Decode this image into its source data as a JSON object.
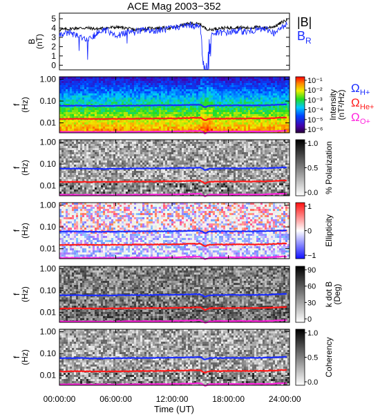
{
  "title": "ACE Mag 2003−352",
  "colors": {
    "black": "#000000",
    "blue": "#1a2cff",
    "red": "#ff1a1a",
    "magenta": "#ff22dd",
    "helium_label": "#ff1a1a",
    "oxygen_label": "#ff22dd"
  },
  "chart_data": [
    {
      "type": "line",
      "panel": "magnetic-field",
      "ylabel": "B",
      "yunit": "(nT)",
      "ylim": [
        -0.5,
        5.6
      ],
      "yticks": [
        "0",
        "1",
        "2",
        "3",
        "4",
        "5"
      ],
      "xlim_hours": [
        0,
        24.5
      ],
      "legend": [
        "|B|",
        "B"
      ],
      "legend_subscript": "R",
      "series": [
        {
          "name": "|B|",
          "color": "#000000",
          "x": [
            0,
            1,
            2,
            3,
            4,
            5,
            6,
            7,
            8,
            9,
            10,
            11,
            12,
            13,
            14,
            15,
            15.5,
            16,
            17,
            18,
            19,
            20,
            21,
            22,
            23,
            24
          ],
          "y": [
            3.8,
            3.9,
            4.0,
            4.0,
            3.9,
            4.0,
            4.1,
            4.0,
            3.8,
            3.9,
            4.0,
            4.0,
            4.0,
            4.3,
            4.5,
            4.4,
            4.0,
            3.8,
            4.0,
            4.0,
            4.1,
            4.0,
            4.1,
            4.0,
            4.2,
            4.8
          ]
        },
        {
          "name": "B",
          "color": "#1a2cff",
          "x": [
            0,
            1,
            2,
            3,
            4,
            5,
            6,
            7,
            8,
            9,
            10,
            11,
            12,
            13,
            14,
            15,
            15.5,
            16,
            17,
            18,
            19,
            20,
            21,
            22,
            23,
            24
          ],
          "y": [
            3.3,
            3.5,
            3.2,
            2.6,
            3.5,
            3.8,
            3.1,
            3.5,
            3.6,
            3.8,
            3.7,
            3.8,
            4.0,
            4.2,
            4.3,
            4.1,
            0.0,
            3.3,
            3.5,
            3.5,
            3.7,
            3.6,
            3.8,
            3.9,
            3.4,
            4.4
          ]
        }
      ]
    },
    {
      "type": "heatmap",
      "panel": "intensity",
      "ylabel": "f",
      "yunit": "(Hz)",
      "yscale": "log",
      "yticks": [
        "1.00",
        "0.10",
        "0.01"
      ],
      "colorbar_label": "Intensity",
      "colorbar_unit": "(nT²/Hz)",
      "colorbar_ticks": [
        "10⁻¹",
        "10⁻²",
        "10⁻³",
        "10⁻⁴",
        "10⁻⁵",
        "10⁻⁶"
      ]
    },
    {
      "type": "heatmap",
      "panel": "polarization",
      "ylabel": "f",
      "yunit": "(Hz)",
      "yscale": "log",
      "yticks": [
        "1.00",
        "0.10",
        "0.01"
      ],
      "colorbar_label": "% Polarization",
      "colorbar_ticks": [
        "1.0",
        "0.5",
        "0.0"
      ]
    },
    {
      "type": "heatmap",
      "panel": "ellipticity",
      "ylabel": "f",
      "yunit": "(Hz)",
      "yscale": "log",
      "yticks": [
        "1.00",
        "0.10",
        "0.01"
      ],
      "colorbar_label": "Ellipticity",
      "colorbar_ticks": [
        "1",
        "0",
        "−1"
      ]
    },
    {
      "type": "heatmap",
      "panel": "wave-normal-angle",
      "ylabel": "f",
      "yunit": "(Hz)",
      "yscale": "log",
      "yticks": [
        "1.00",
        "0.10",
        "0.01"
      ],
      "colorbar_label": "k dot B",
      "colorbar_unit": "(Deg)",
      "colorbar_ticks": [
        "90",
        "60",
        "30",
        "0"
      ]
    },
    {
      "type": "heatmap",
      "panel": "coherency",
      "ylabel": "f",
      "yunit": "(Hz)",
      "yscale": "log",
      "yticks": [
        "1.00",
        "0.10",
        "0.01"
      ],
      "colorbar_label": "Coherency",
      "colorbar_ticks": [
        "1.0",
        "0.5",
        "0.0"
      ]
    }
  ],
  "gyrofrequency_lines": {
    "legend": [
      "Ω",
      "Ω",
      "Ω"
    ],
    "legend_subscripts": [
      "H+",
      "He+",
      "O+"
    ],
    "series": [
      {
        "name": "H+",
        "color": "#1a2cff",
        "x": [
          0,
          2,
          4,
          6,
          8,
          10,
          12,
          13,
          14,
          15,
          15.5,
          16,
          18,
          20,
          22,
          24
        ],
        "y": [
          0.061,
          0.062,
          0.06,
          0.061,
          0.062,
          0.063,
          0.064,
          0.065,
          0.067,
          0.068,
          0.052,
          0.062,
          0.063,
          0.063,
          0.064,
          0.07
        ]
      },
      {
        "name": "He+",
        "color": "#ff1a1a",
        "x": [
          0,
          2,
          4,
          6,
          8,
          10,
          12,
          13,
          14,
          15,
          15.5,
          16,
          18,
          20,
          22,
          24
        ],
        "y": [
          0.015,
          0.0153,
          0.015,
          0.0152,
          0.0155,
          0.0157,
          0.016,
          0.0163,
          0.0168,
          0.017,
          0.013,
          0.0155,
          0.0158,
          0.0158,
          0.016,
          0.0175
        ]
      },
      {
        "name": "O+",
        "color": "#ff22dd",
        "x": [
          0,
          2,
          4,
          6,
          8,
          10,
          12,
          13,
          14,
          15,
          15.5,
          16,
          18,
          20,
          22,
          24
        ],
        "y": [
          0.0038,
          0.0038,
          0.0038,
          0.0038,
          0.0039,
          0.0039,
          0.004,
          0.0041,
          0.0042,
          0.0043,
          0.0033,
          0.0039,
          0.004,
          0.004,
          0.004,
          0.0044
        ]
      }
    ]
  },
  "x_axis": {
    "label": "Time (UT)",
    "ticks": [
      "00:00:00",
      "06:00:00",
      "12:00:00",
      "18:00:00",
      "24:00:00"
    ]
  }
}
